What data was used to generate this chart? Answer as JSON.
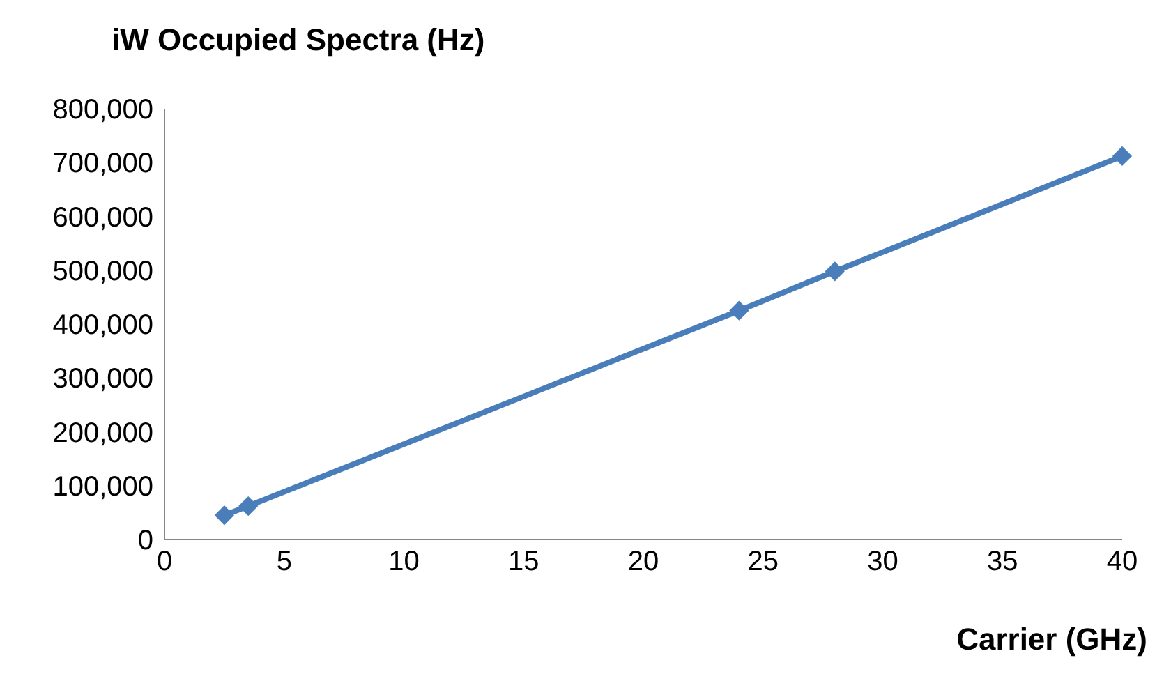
{
  "chart_data": {
    "type": "line",
    "title": "iW Occupied Spectra (Hz)",
    "xlabel": "Carrier (GHz)",
    "x": [
      2.5,
      3.5,
      24,
      28,
      40
    ],
    "series": [
      {
        "color": "#4a7ebb",
        "values": [
          45000,
          62000,
          425000,
          498000,
          712000
        ]
      }
    ],
    "xlim": [
      0,
      40
    ],
    "xticks": [
      0,
      5,
      10,
      15,
      20,
      25,
      30,
      35,
      40
    ],
    "ylim": [
      0,
      800000
    ],
    "yticks": [
      0,
      {
        "value": 100000,
        "label": "100,000"
      },
      {
        "value": 200000,
        "label": "200,000"
      },
      {
        "value": 300000,
        "label": "300,000"
      },
      {
        "value": 400000,
        "label": "400,000"
      },
      {
        "value": 500000,
        "label": "500,000"
      },
      {
        "value": 600000,
        "label": "600,000"
      },
      {
        "value": 700000,
        "label": "700,000"
      },
      {
        "value": 800000,
        "label": "800,000"
      }
    ],
    "grid": false,
    "legend": false,
    "marker": "diamond",
    "line_style": "solid"
  }
}
